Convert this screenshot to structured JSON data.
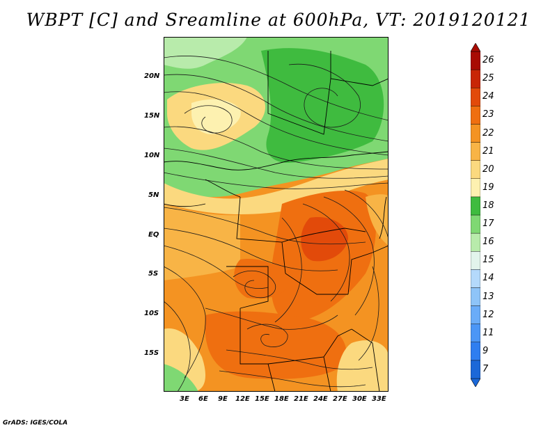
{
  "title": "WBPT [C] and Sreamline at 600hPa, VT: 2019120121",
  "footer": "GrADS: IGES/COLA",
  "lat_labels": [
    "20N",
    "15N",
    "10N",
    "5N",
    "EQ",
    "5S",
    "10S",
    "15S"
  ],
  "lon_labels": [
    "3E",
    "6E",
    "9E",
    "12E",
    "15E",
    "18E",
    "21E",
    "24E",
    "27E",
    "30E",
    "33E"
  ],
  "colorbar": {
    "labels": [
      "7",
      "9",
      "11",
      "12",
      "13",
      "14",
      "15",
      "16",
      "17",
      "18",
      "19",
      "20",
      "21",
      "22",
      "23",
      "24",
      "25",
      "26"
    ],
    "colors": [
      "#1b68d8",
      "#2f7ef0",
      "#4b96f6",
      "#6aacf8",
      "#8ec4f8",
      "#b4d9fb",
      "#e2f4ec",
      "#b8ebab",
      "#7fd873",
      "#3fbb3f",
      "#fdf1b0",
      "#fbd97f",
      "#f8b446",
      "#f49322",
      "#ef6f10",
      "#e24a0a",
      "#c82606",
      "#a80b03"
    ]
  },
  "field_colors": {
    "green_dark": "#3fbb3f",
    "green": "#7fd873",
    "green_light": "#b8ebab",
    "yellow": "#fdf1b0",
    "yellow_orange": "#fbd97f",
    "light_orange": "#f8b446",
    "orange": "#f49322",
    "dark_orange": "#ef6f10",
    "red_orange": "#e24a0a"
  }
}
